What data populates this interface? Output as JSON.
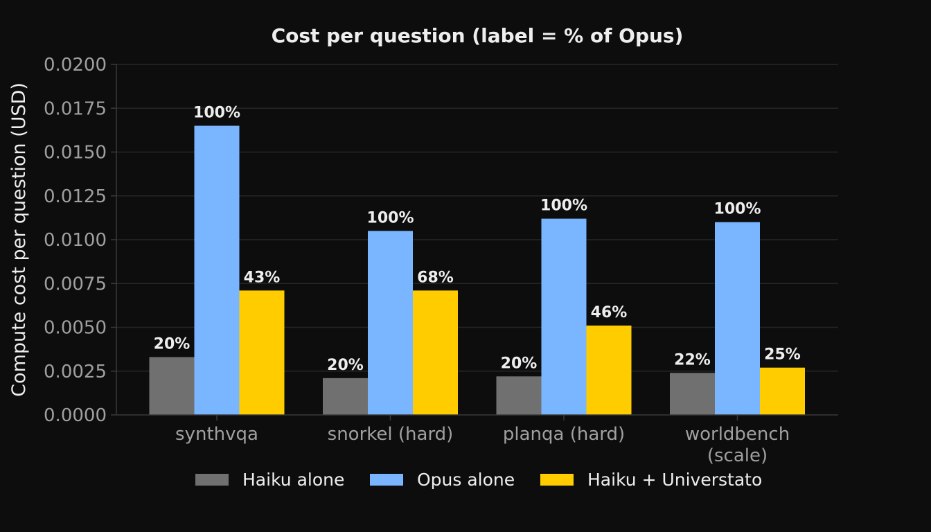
{
  "chart_data": {
    "type": "bar",
    "title": "Cost per question  (label = % of Opus)",
    "xlabel": "",
    "ylabel": "Compute cost per question (USD)",
    "ylim": [
      0,
      0.02
    ],
    "yticks": [
      "0.0000",
      "0.0025",
      "0.0050",
      "0.0075",
      "0.0100",
      "0.0125",
      "0.0150",
      "0.0175",
      "0.0200"
    ],
    "categories": [
      "synthvqa",
      "snorkel (hard)",
      "planqa (hard)",
      "worldbench\n(scale)"
    ],
    "series": [
      {
        "name": "Haiku alone",
        "color": "#707070",
        "values": [
          0.0033,
          0.0021,
          0.0022,
          0.0024
        ],
        "labels": [
          "20%",
          "20%",
          "20%",
          "22%"
        ]
      },
      {
        "name": "Opus alone",
        "color": "#7ab6ff",
        "values": [
          0.0165,
          0.0105,
          0.0112,
          0.011
        ],
        "labels": [
          "100%",
          "100%",
          "100%",
          "100%"
        ]
      },
      {
        "name": "Haiku + Universtato",
        "color": "#ffcc00",
        "values": [
          0.0071,
          0.0071,
          0.0051,
          0.0027
        ],
        "labels": [
          "43%",
          "68%",
          "46%",
          "25%"
        ]
      }
    ],
    "grid": true,
    "legend": "bottom-center",
    "colors": {
      "background": "#0d0d0d",
      "grid": "#262626",
      "axis": "#3a3a3a",
      "tick_text": "#a0a0a0",
      "title_text": "#eeeeee",
      "label_text": "#eeeeee"
    }
  }
}
